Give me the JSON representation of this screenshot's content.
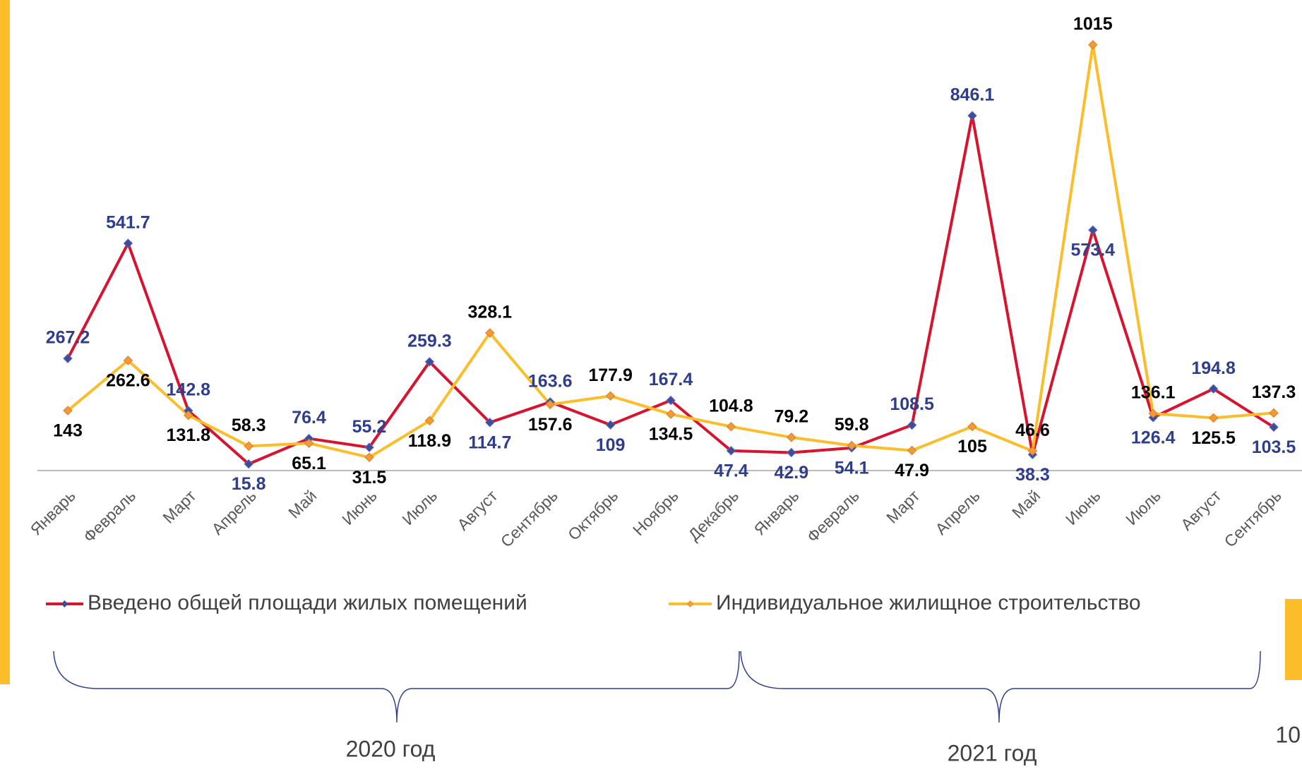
{
  "chart_data": {
    "type": "line",
    "categories": [
      "Январь",
      "Февраль",
      "Март",
      "Апрель",
      "Май",
      "Июнь",
      "Июль",
      "Август",
      "Сентябрь",
      "Октябрь",
      "Ноябрь",
      "Декабрь",
      "Январь",
      "Февраль",
      "Март",
      "Апрель",
      "Май",
      "Июнь",
      "Июль",
      "Август",
      "Сентябрь"
    ],
    "series": [
      {
        "name": "Введено общей площади жилых помещений",
        "color": "#d7132f",
        "marker_color": "#3d4c9c",
        "label_color": "#2e3d8c",
        "values": [
          267.2,
          541.7,
          142.8,
          15.8,
          76.4,
          55.2,
          259.3,
          114.7,
          163.6,
          109,
          167.4,
          47.4,
          42.9,
          54.1,
          108.5,
          846.1,
          38.3,
          573.4,
          126.4,
          194.8,
          103.5
        ]
      },
      {
        "name": "Индивидуальное жилищное строительство",
        "color": "#fbbd2a",
        "marker_color": "#f29a3a",
        "label_color": "#000000",
        "values": [
          143,
          262.6,
          131.8,
          58.3,
          65.1,
          31.5,
          118.9,
          328.1,
          157.6,
          177.9,
          134.5,
          104.8,
          79.2,
          59.8,
          47.9,
          105,
          46.6,
          1015,
          136.1,
          125.5,
          137.3
        ]
      }
    ],
    "ylim": [
      0,
      1100
    ],
    "groups": [
      {
        "label": "2020 год"
      },
      {
        "label": "2021 год"
      }
    ],
    "page_number": "10"
  }
}
